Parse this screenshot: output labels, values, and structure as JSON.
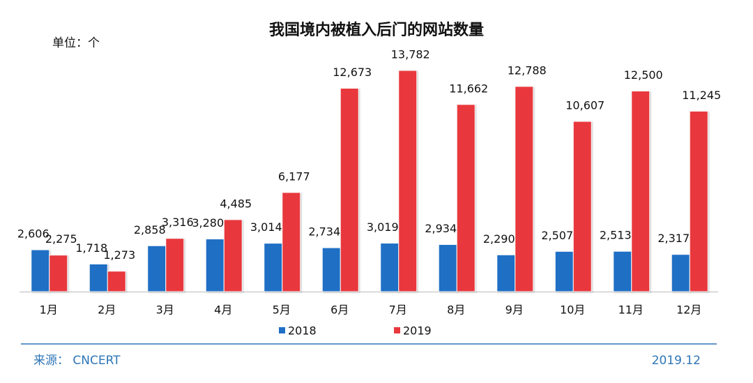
{
  "chart_data": {
    "type": "bar",
    "title": "我国境内被植入后门的网站数量",
    "unit_label": "单位：个",
    "source": "来源： CNCERT",
    "date": "2019.12",
    "categories": [
      "1月",
      "2月",
      "3月",
      "4月",
      "5月",
      "6月",
      "7月",
      "8月",
      "9月",
      "10月",
      "11月",
      "12月"
    ],
    "series": [
      {
        "name": "2018",
        "color": "#1f6fc5",
        "values": [
          2606,
          1718,
          2858,
          3280,
          3014,
          2734,
          3019,
          2934,
          2290,
          2507,
          2513,
          2317
        ],
        "value_labels": [
          "2,606",
          "1,718",
          "2,858",
          "3,280",
          "3,014",
          "2,734",
          "3,019",
          "2,934",
          "2,290",
          "2,507",
          "2,513",
          "2,317"
        ]
      },
      {
        "name": "2019",
        "color": "#e8383d",
        "values": [
          2275,
          1273,
          3316,
          4485,
          6177,
          12673,
          13782,
          11662,
          12788,
          10607,
          12500,
          11245
        ],
        "value_labels": [
          "2,275",
          "1,273",
          "3,316",
          "4,485",
          "6,177",
          "12,673",
          "13,782",
          "11,662",
          "12,788",
          "10,607",
          "12,500",
          "11,245"
        ]
      }
    ],
    "ylim": [
      0,
      15000
    ]
  }
}
